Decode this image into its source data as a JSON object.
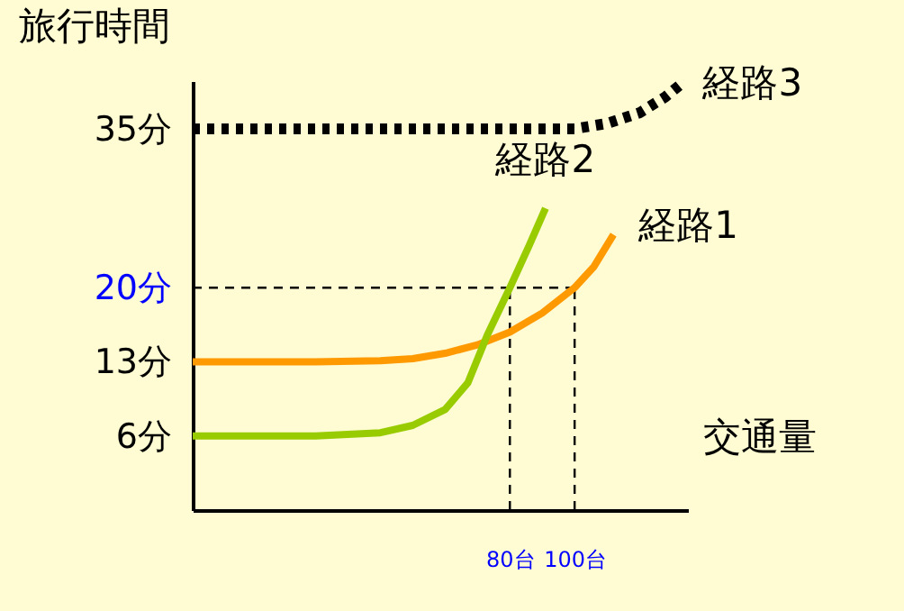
{
  "chart_data": {
    "type": "line",
    "xlabel": "交通量",
    "ylabel": "旅行時間",
    "xlim": [
      -18,
      135
    ],
    "ylim": [
      -1,
      39.5
    ],
    "xticks": [
      {
        "value": 80,
        "label": "80台"
      },
      {
        "value": 100,
        "label": "100台"
      }
    ],
    "yticks": [
      {
        "value": 6,
        "label": "6分"
      },
      {
        "value": 13,
        "label": "13分"
      },
      {
        "value": 20,
        "label": "20分"
      },
      {
        "value": 35,
        "label": "35分"
      }
    ],
    "grid": false,
    "legend": false,
    "marker": "none",
    "ref_lines": [
      {
        "axis": "y",
        "value": 20,
        "color": "#000000",
        "line_style": "dashed"
      },
      {
        "axis": "x",
        "value": 80,
        "color": "#000000",
        "line_style": "dashed"
      },
      {
        "axis": "x",
        "value": 100,
        "color": "#000000",
        "line_style": "dashed"
      }
    ],
    "series": [
      {
        "name": "経路1",
        "color": "#ff9900",
        "line_style": "solid",
        "x": [
          -18,
          0,
          20,
          40,
          50,
          60,
          70,
          80,
          90,
          100,
          106,
          112
        ],
        "values": [
          13,
          13,
          13,
          13.1,
          13.3,
          13.8,
          14.6,
          15.8,
          17.6,
          20,
          22,
          25
        ]
      },
      {
        "name": "経路2",
        "color": "#99cc00",
        "line_style": "solid",
        "x": [
          -18,
          0,
          20,
          40,
          50,
          60,
          67,
          73,
          80,
          86,
          91
        ],
        "values": [
          6,
          6,
          6,
          6.3,
          7,
          8.5,
          11,
          15.5,
          20,
          24,
          27.5
        ]
      },
      {
        "name": "経路3",
        "color": "#000000",
        "line_style": "dotted",
        "x": [
          -18,
          20,
          60,
          100,
          110,
          120,
          128,
          134
        ],
        "values": [
          35,
          35,
          35,
          35,
          35.5,
          36.5,
          38,
          39.5
        ]
      }
    ]
  }
}
